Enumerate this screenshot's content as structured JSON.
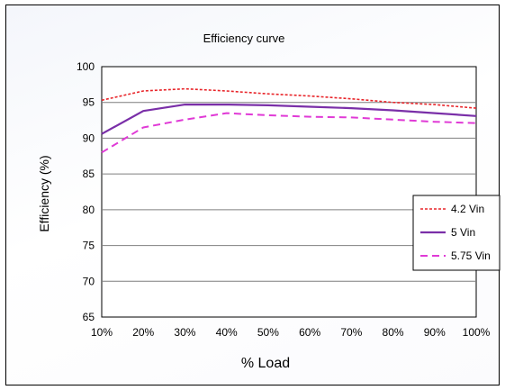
{
  "chart_data": {
    "type": "line",
    "title": "Efficiency curve",
    "xlabel": "% Load",
    "ylabel": "Efficiency (%)",
    "categories": [
      "10%",
      "20%",
      "30%",
      "40%",
      "50%",
      "60%",
      "70%",
      "80%",
      "90%",
      "100%"
    ],
    "ylim": [
      65,
      100
    ],
    "yticks": [
      "65",
      "70",
      "75",
      "80",
      "85",
      "90",
      "95",
      "100"
    ],
    "grid": true,
    "legend": "right",
    "series": [
      {
        "name": "4.2 Vin",
        "color": "#e8262b",
        "dash": "dotted",
        "values": [
          95.3,
          96.6,
          96.9,
          96.6,
          96.2,
          95.9,
          95.5,
          95.0,
          94.7,
          94.2
        ]
      },
      {
        "name": "5 Vin",
        "color": "#7a2fa8",
        "dash": "solid",
        "values": [
          90.6,
          93.8,
          94.7,
          94.7,
          94.6,
          94.4,
          94.2,
          93.9,
          93.5,
          93.1
        ]
      },
      {
        "name": "5.75 Vin",
        "color": "#e03ad6",
        "dash": "dashed",
        "values": [
          88.0,
          91.5,
          92.6,
          93.5,
          93.2,
          93.0,
          92.9,
          92.6,
          92.3,
          92.1
        ]
      }
    ]
  }
}
